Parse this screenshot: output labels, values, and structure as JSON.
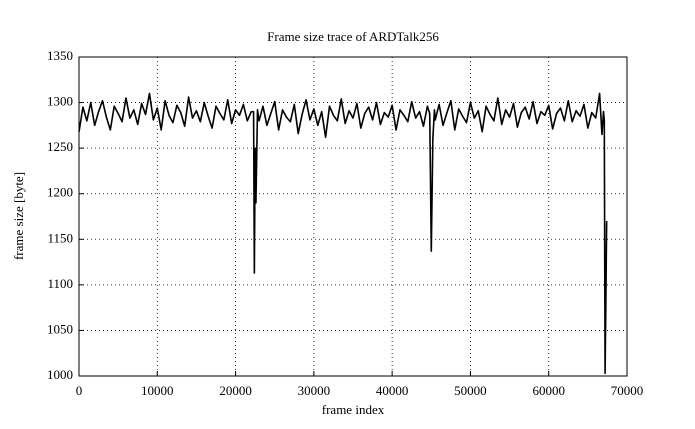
{
  "chart_data": {
    "type": "line",
    "title": "Frame size trace of ARDTalk256",
    "x_label": "frame index",
    "y_label": "frame size [byte]",
    "xlim": [
      0,
      70000
    ],
    "ylim": [
      1000,
      1350
    ],
    "xticks": [
      0,
      10000,
      20000,
      30000,
      40000,
      50000,
      60000,
      70000
    ],
    "yticks": [
      1000,
      1050,
      1100,
      1150,
      1200,
      1250,
      1300,
      1350
    ],
    "grid": true,
    "series": [
      {
        "name": "ARDTalk256",
        "color": "#000000",
        "x": [
          0,
          500,
          1000,
          1500,
          2000,
          2500,
          3000,
          3500,
          4000,
          4500,
          5000,
          5500,
          6000,
          6500,
          7000,
          7500,
          8000,
          8500,
          9000,
          9500,
          10000,
          10500,
          11000,
          11500,
          12000,
          12500,
          13000,
          13500,
          14000,
          14500,
          15000,
          15500,
          16000,
          16500,
          17000,
          17500,
          18000,
          18500,
          19000,
          19500,
          20000,
          20500,
          21000,
          21500,
          22000,
          22300,
          22400,
          22500,
          22600,
          22800,
          23000,
          23500,
          24000,
          24500,
          25000,
          25500,
          26000,
          26500,
          27000,
          27500,
          28000,
          28500,
          29000,
          29500,
          30000,
          30500,
          31000,
          31500,
          32000,
          32500,
          33000,
          33500,
          34000,
          34500,
          35000,
          35500,
          36000,
          36500,
          37000,
          37500,
          38000,
          38500,
          39000,
          39500,
          40000,
          40500,
          41000,
          41500,
          42000,
          42500,
          43000,
          43500,
          44000,
          44500,
          44800,
          45000,
          45200,
          45400,
          45500,
          46000,
          46500,
          47000,
          47500,
          48000,
          48500,
          49000,
          49500,
          50000,
          50500,
          51000,
          51500,
          52000,
          52500,
          53000,
          53500,
          54000,
          54500,
          55000,
          55500,
          56000,
          56500,
          57000,
          57500,
          58000,
          58500,
          59000,
          59500,
          60000,
          60500,
          61000,
          61500,
          62000,
          62500,
          63000,
          63500,
          64000,
          64500,
          65000,
          65500,
          66000,
          66500,
          66800,
          67000,
          67100,
          67200,
          67300,
          67400
        ],
        "values": [
          1268,
          1295,
          1280,
          1300,
          1275,
          1290,
          1302,
          1284,
          1270,
          1296,
          1288,
          1279,
          1305,
          1283,
          1292,
          1276,
          1299,
          1287,
          1310,
          1281,
          1294,
          1270,
          1302,
          1286,
          1278,
          1297,
          1289,
          1274,
          1306,
          1283,
          1291,
          1279,
          1300,
          1285,
          1272,
          1296,
          1288,
          1281,
          1303,
          1277,
          1292,
          1286,
          1298,
          1280,
          1290,
          1290,
          1113,
          1250,
          1190,
          1292,
          1280,
          1296,
          1275,
          1288,
          1301,
          1270,
          1292,
          1284,
          1279,
          1298,
          1266,
          1287,
          1303,
          1281,
          1293,
          1275,
          1290,
          1262,
          1296,
          1286,
          1280,
          1304,
          1277,
          1291,
          1283,
          1299,
          1272,
          1288,
          1295,
          1281,
          1300,
          1276,
          1289,
          1284,
          1297,
          1270,
          1292,
          1286,
          1279,
          1301,
          1283,
          1290,
          1274,
          1296,
          1288,
          1137,
          1260,
          1292,
          1281,
          1298,
          1275,
          1289,
          1302,
          1270,
          1293,
          1285,
          1278,
          1300,
          1283,
          1291,
          1268,
          1296,
          1287,
          1280,
          1305,
          1276,
          1292,
          1284,
          1299,
          1273,
          1289,
          1295,
          1282,
          1301,
          1277,
          1290,
          1286,
          1297,
          1271,
          1288,
          1294,
          1280,
          1302,
          1279,
          1291,
          1285,
          1298,
          1272,
          1289,
          1283,
          1310,
          1265,
          1290,
          1280,
          1003,
          1080,
          1170
        ]
      }
    ]
  }
}
